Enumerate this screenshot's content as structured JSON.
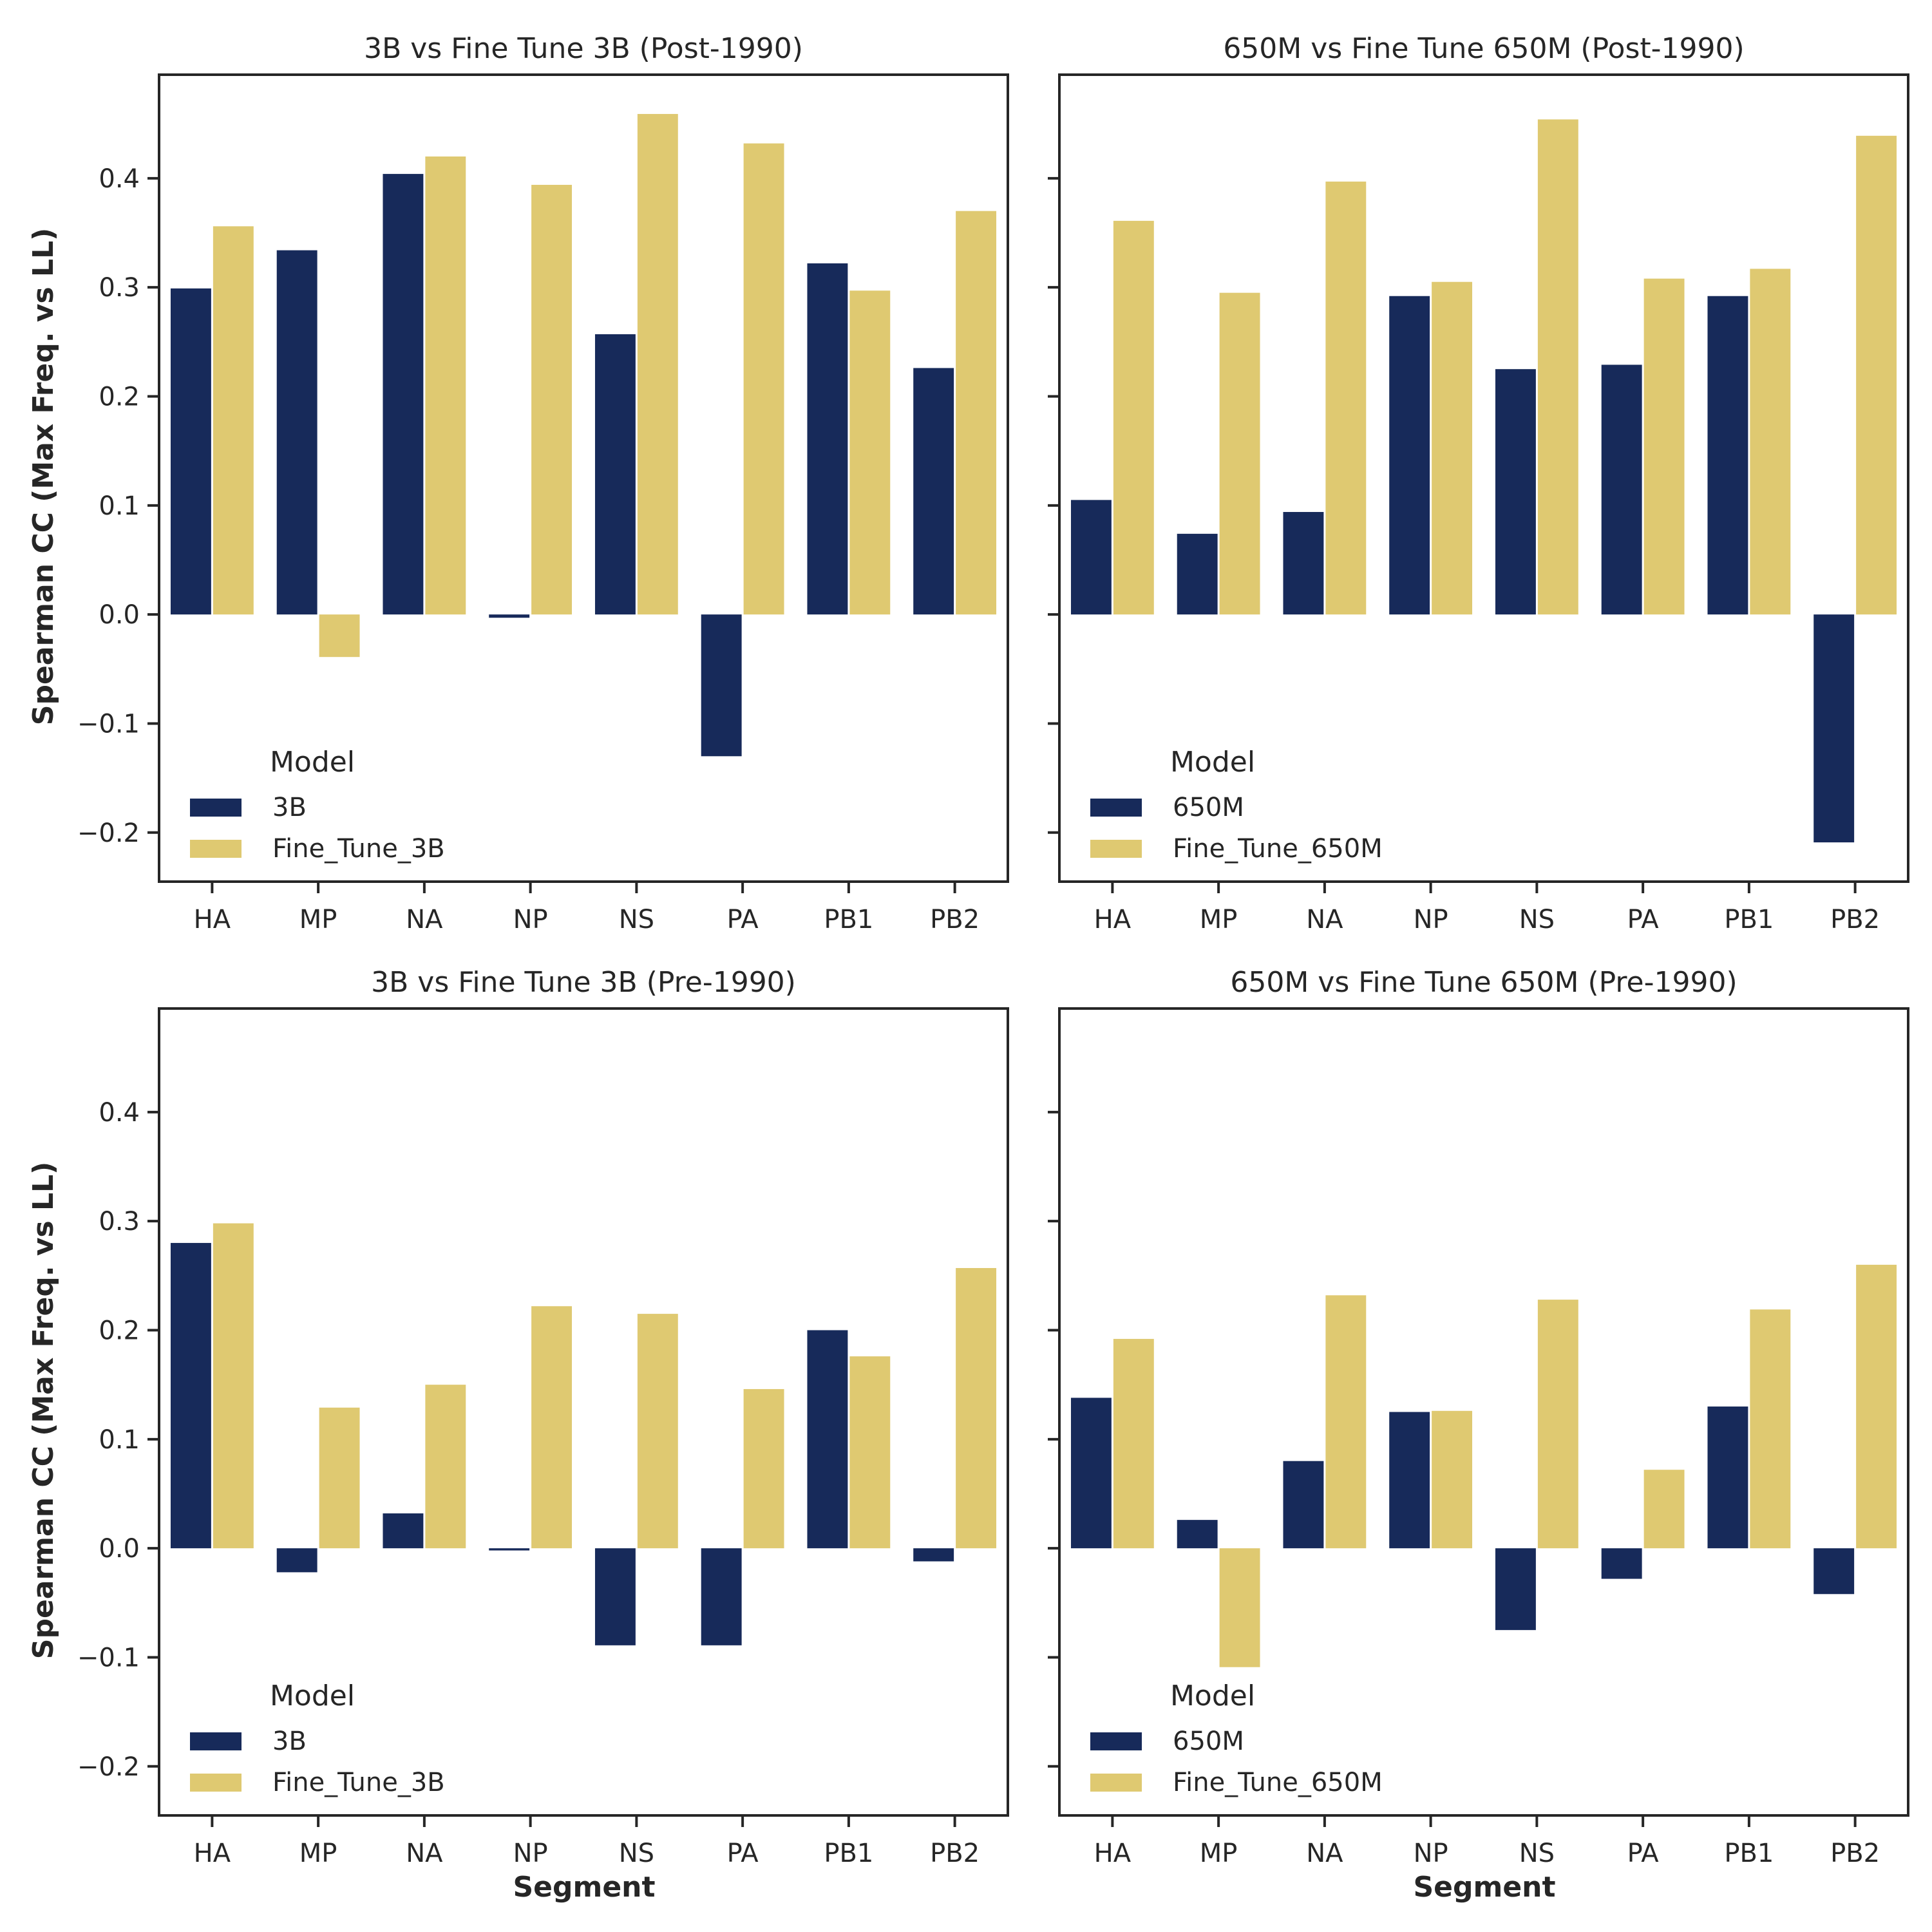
{
  "figure": {
    "ylabel": "Spearman CC (Max Freq. vs LL)",
    "xlabel": "Segment"
  },
  "colors": {
    "base": "#172a5a",
    "fine_tune": "#dfc971",
    "axis": "#262626"
  },
  "chart_data": [
    {
      "type": "bar",
      "title": "3B vs Fine Tune 3B (Post-1990)",
      "categories": [
        "HA",
        "MP",
        "NA",
        "NP",
        "NS",
        "PA",
        "PB1",
        "PB2"
      ],
      "ylim": [
        -0.245,
        0.495
      ],
      "yticks": [
        -0.2,
        -0.1,
        0.0,
        0.1,
        0.2,
        0.3,
        0.4
      ],
      "ytick_labels": [
        "−0.2",
        "−0.1",
        "0.0",
        "0.1",
        "0.2",
        "0.3",
        "0.4"
      ],
      "legend_title": "Model",
      "legend_position": "lower-left",
      "series": [
        {
          "name": "3B",
          "values": [
            0.299,
            0.334,
            0.404,
            -0.003,
            0.257,
            -0.13,
            0.322,
            0.226
          ]
        },
        {
          "name": "Fine_Tune_3B",
          "values": [
            0.356,
            -0.039,
            0.42,
            0.394,
            0.459,
            0.432,
            0.297,
            0.37
          ]
        }
      ]
    },
    {
      "type": "bar",
      "title": "650M vs Fine Tune 650M (Post-1990)",
      "categories": [
        "HA",
        "MP",
        "NA",
        "NP",
        "NS",
        "PA",
        "PB1",
        "PB2"
      ],
      "ylim": [
        -0.245,
        0.495
      ],
      "yticks": [
        -0.2,
        -0.1,
        0.0,
        0.1,
        0.2,
        0.3,
        0.4
      ],
      "ytick_labels": [
        "",
        "",
        "",
        "",
        "",
        "",
        ""
      ],
      "legend_title": "Model",
      "legend_position": "lower-left",
      "series": [
        {
          "name": "650M",
          "values": [
            0.105,
            0.074,
            0.094,
            0.292,
            0.225,
            0.229,
            0.292,
            -0.209
          ]
        },
        {
          "name": "Fine_Tune_650M",
          "values": [
            0.361,
            0.295,
            0.397,
            0.305,
            0.454,
            0.308,
            0.317,
            0.439
          ]
        }
      ]
    },
    {
      "type": "bar",
      "title": "3B vs Fine Tune 3B (Pre-1990)",
      "categories": [
        "HA",
        "MP",
        "NA",
        "NP",
        "NS",
        "PA",
        "PB1",
        "PB2"
      ],
      "ylim": [
        -0.245,
        0.495
      ],
      "yticks": [
        -0.2,
        -0.1,
        0.0,
        0.1,
        0.2,
        0.3,
        0.4
      ],
      "ytick_labels": [
        "−0.2",
        "−0.1",
        "0.0",
        "0.1",
        "0.2",
        "0.3",
        "0.4"
      ],
      "legend_title": "Model",
      "legend_position": "lower-left",
      "series": [
        {
          "name": "3B",
          "values": [
            0.28,
            -0.022,
            0.032,
            -0.002,
            -0.089,
            -0.089,
            0.2,
            -0.012
          ]
        },
        {
          "name": "Fine_Tune_3B",
          "values": [
            0.298,
            0.129,
            0.15,
            0.222,
            0.215,
            0.146,
            0.176,
            0.257
          ]
        }
      ]
    },
    {
      "type": "bar",
      "title": "650M vs Fine Tune 650M (Pre-1990)",
      "categories": [
        "HA",
        "MP",
        "NA",
        "NP",
        "NS",
        "PA",
        "PB1",
        "PB2"
      ],
      "ylim": [
        -0.245,
        0.495
      ],
      "yticks": [
        -0.2,
        -0.1,
        0.0,
        0.1,
        0.2,
        0.3,
        0.4
      ],
      "ytick_labels": [
        "",
        "",
        "",
        "",
        "",
        "",
        ""
      ],
      "legend_title": "Model",
      "legend_position": "lower-left",
      "series": [
        {
          "name": "650M",
          "values": [
            0.138,
            0.026,
            0.08,
            0.125,
            -0.075,
            -0.028,
            0.13,
            -0.042
          ]
        },
        {
          "name": "Fine_Tune_650M",
          "values": [
            0.192,
            -0.109,
            0.232,
            0.126,
            0.228,
            0.072,
            0.219,
            0.26
          ]
        }
      ]
    }
  ]
}
